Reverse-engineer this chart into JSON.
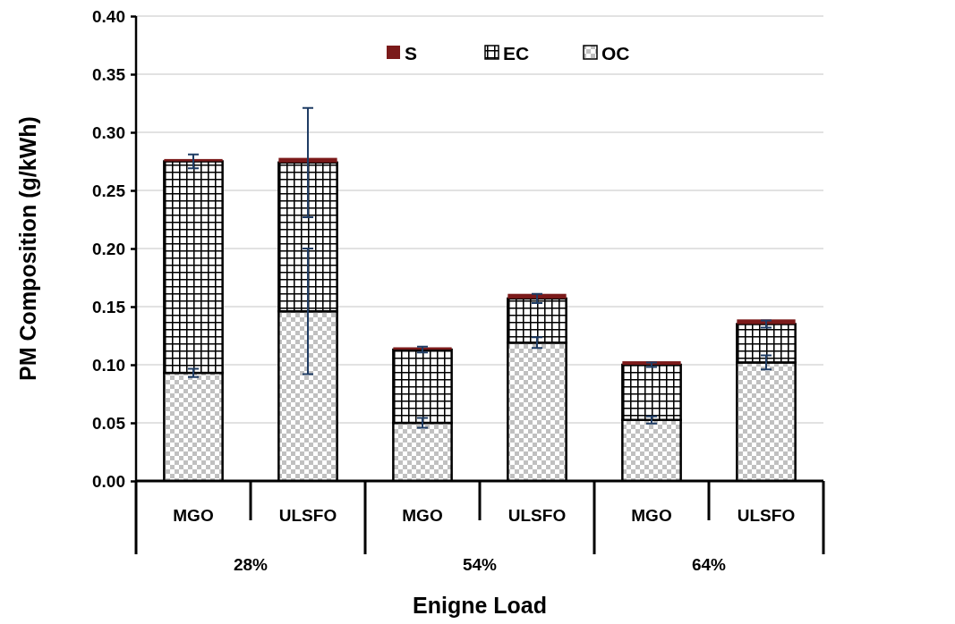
{
  "chart_data": {
    "type": "bar",
    "stacked": true,
    "xlabel": "Enigne Load",
    "ylabel": "PM Composition (g/kWh)",
    "categories": [
      "MGO",
      "ULSFO",
      "MGO",
      "ULSFO",
      "MGO",
      "ULSFO"
    ],
    "annotations": [
      "28%",
      "54%",
      "64%"
    ],
    "series": [
      {
        "name": "OC",
        "color": "#c0c0c0",
        "values": [
          0.093,
          0.146,
          0.05,
          0.119,
          0.0525,
          0.102
        ],
        "errors": [
          0.0035,
          0.054,
          0.0042,
          0.0046,
          0.003,
          0.006
        ]
      },
      {
        "name": "EC",
        "color": "#000000",
        "values": [
          0.182,
          0.128,
          0.063,
          0.038,
          0.0475,
          0.033
        ],
        "errors": [
          0.006,
          0.047,
          0.0025,
          0.004,
          0.002,
          0.003
        ]
      },
      {
        "name": "S",
        "color": "#7b1a1a",
        "values": [
          0.002,
          0.004,
          0.002,
          0.004,
          0.003,
          0.004
        ]
      }
    ],
    "ylim": [
      0,
      0.4
    ],
    "yticks": [
      {
        "value": 0,
        "label": "0.00"
      },
      {
        "value": 0.05,
        "label": "0.05"
      },
      {
        "value": 0.1,
        "label": "0.10"
      },
      {
        "value": 0.15,
        "label": "0.15"
      },
      {
        "value": 0.2,
        "label": "0.20"
      },
      {
        "value": 0.25,
        "label": "0.25"
      },
      {
        "value": 0.3,
        "label": "0.30"
      },
      {
        "value": 0.35,
        "label": "0.35"
      },
      {
        "value": 0.4,
        "label": "0.40"
      }
    ],
    "grid": "y",
    "legend": "top"
  }
}
